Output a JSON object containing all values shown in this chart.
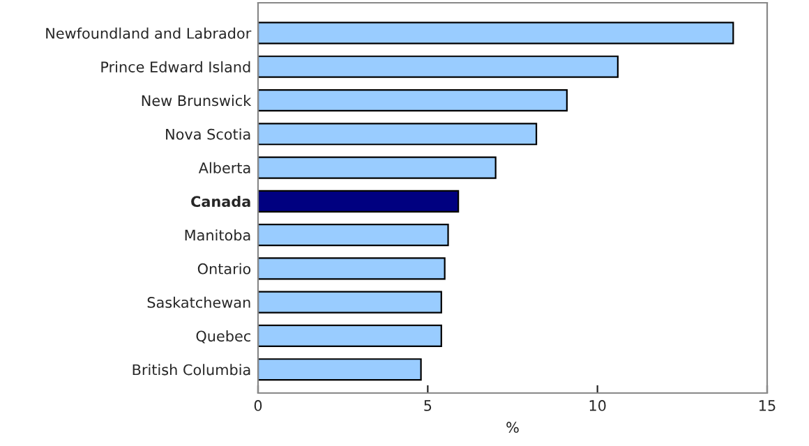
{
  "chart_data": {
    "type": "bar",
    "orientation": "horizontal",
    "xlabel": "%",
    "categories": [
      "Newfoundland and Labrador",
      "Prince Edward Island",
      "New Brunswick",
      "Nova Scotia",
      "Alberta",
      "Canada",
      "Manitoba",
      "Ontario",
      "Saskatchewan",
      "Quebec",
      "British Columbia"
    ],
    "values": [
      14.0,
      10.6,
      9.1,
      8.2,
      7.0,
      5.9,
      5.6,
      5.5,
      5.4,
      5.4,
      4.8
    ],
    "colors": [
      "#99ccff",
      "#99ccff",
      "#99ccff",
      "#99ccff",
      "#99ccff",
      "#000080",
      "#99ccff",
      "#99ccff",
      "#99ccff",
      "#99ccff",
      "#99ccff"
    ],
    "xlim": [
      0,
      15
    ],
    "xticks": [
      0,
      5,
      10,
      15
    ],
    "grid": false,
    "legend": false
  }
}
